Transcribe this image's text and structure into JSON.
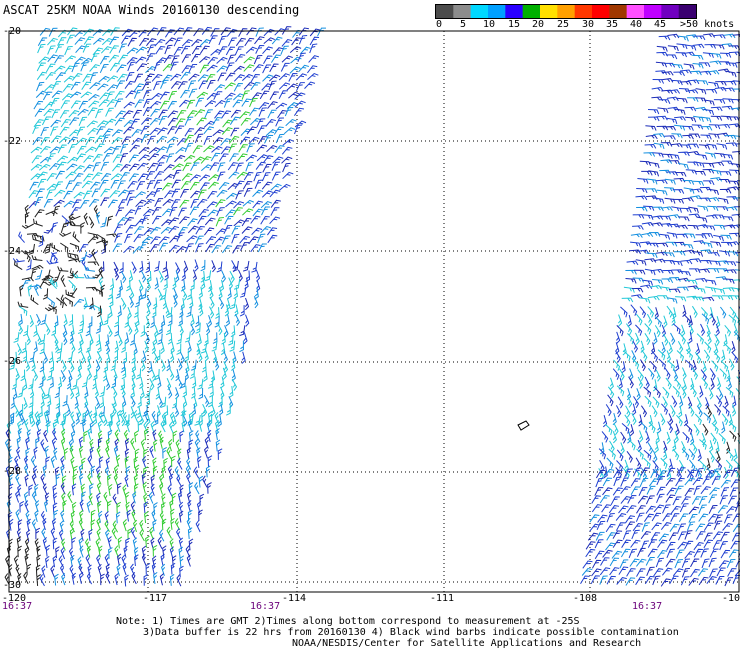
{
  "title": "ASCAT 25KM NOAA Winds 20160130 descending",
  "legend": {
    "labels": [
      "0",
      "5",
      "10",
      "15",
      "20",
      "25",
      "30",
      "35",
      "40",
      "45",
      ">50 knots"
    ],
    "colors": [
      "#4c4c4c",
      "#8c8c8c",
      "#00d8ff",
      "#00a0ff",
      "#2a00ff",
      "#00b000",
      "#ffe000",
      "#ffa000",
      "#ff3800",
      "#ff0000",
      "#a03800",
      "#ff50ff",
      "#c000ff",
      "#7000c0",
      "#3a0070"
    ]
  },
  "map": {
    "lat_labels": [
      "-20",
      "-22",
      "-24",
      "-26",
      "-28",
      "-30"
    ],
    "lon_labels": [
      "-120",
      "-117",
      "-114",
      "-111",
      "-108",
      "-10"
    ],
    "swath_times": [
      "16:37",
      "16:37",
      "16:37"
    ],
    "feature_icon": "island-outline-icon"
  },
  "notes": {
    "line1": "Note: 1) Times are GMT 2)Times along bottom correspond to measurement at -25S",
    "line2": "3)Data buffer is 22 hrs from 20160130 4) Black wind barbs indicate possible contamination",
    "line3": "NOAA/NESDIS/Center for Satellite Applications and Research"
  }
}
